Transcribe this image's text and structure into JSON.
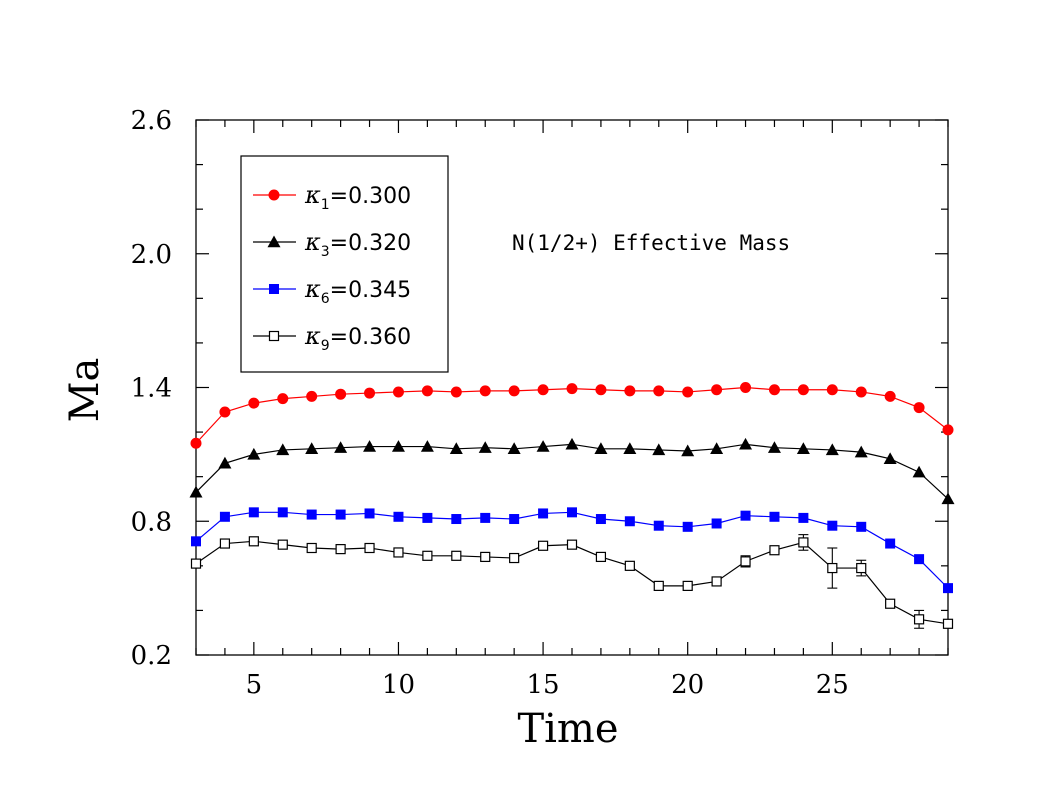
{
  "chart_data": {
    "type": "line",
    "title": "",
    "annotation": "N(1/2+) Effective Mass",
    "xlabel": "Time",
    "ylabel": "Ma",
    "xlim": [
      3,
      29
    ],
    "ylim": [
      0.2,
      2.6
    ],
    "xticks": [
      5,
      10,
      15,
      20,
      25
    ],
    "yticks": [
      0.2,
      0.8,
      1.4,
      2.0,
      2.6
    ],
    "ytick_labels": [
      "0.2",
      "0.8",
      "1.4",
      "2.0",
      "2.6"
    ],
    "xtick_labels": [
      "5",
      "10",
      "15",
      "20",
      "25"
    ],
    "grid": false,
    "legend_position": "top-left",
    "series": [
      {
        "name": "κ1=0.300",
        "symbol": "κ",
        "subscript": "1",
        "value_text": "=0.300",
        "color": "#ff0000",
        "marker": "filled-circle",
        "x": [
          3,
          4,
          5,
          6,
          7,
          8,
          9,
          10,
          11,
          12,
          13,
          14,
          15,
          16,
          17,
          18,
          19,
          20,
          21,
          22,
          23,
          24,
          25,
          26,
          27,
          28,
          29
        ],
        "y": [
          1.15,
          1.29,
          1.33,
          1.35,
          1.36,
          1.37,
          1.375,
          1.38,
          1.385,
          1.38,
          1.385,
          1.385,
          1.39,
          1.395,
          1.39,
          1.385,
          1.385,
          1.38,
          1.39,
          1.4,
          1.39,
          1.39,
          1.39,
          1.38,
          1.36,
          1.31,
          1.21
        ],
        "yerr": []
      },
      {
        "name": "κ3=0.320",
        "symbol": "κ",
        "subscript": "3",
        "value_text": "=0.320",
        "color": "#000000",
        "marker": "filled-triangle",
        "x": [
          3,
          4,
          5,
          6,
          7,
          8,
          9,
          10,
          11,
          12,
          13,
          14,
          15,
          16,
          17,
          18,
          19,
          20,
          21,
          22,
          23,
          24,
          25,
          26,
          27,
          28,
          29
        ],
        "y": [
          0.93,
          1.06,
          1.1,
          1.12,
          1.125,
          1.13,
          1.135,
          1.135,
          1.135,
          1.125,
          1.13,
          1.125,
          1.135,
          1.145,
          1.125,
          1.125,
          1.12,
          1.115,
          1.125,
          1.145,
          1.13,
          1.125,
          1.12,
          1.11,
          1.08,
          1.02,
          0.9
        ],
        "yerr": []
      },
      {
        "name": "κ6=0.345",
        "symbol": "κ",
        "subscript": "6",
        "value_text": "=0.345",
        "color": "#0000ff",
        "marker": "filled-square",
        "x": [
          3,
          4,
          5,
          6,
          7,
          8,
          9,
          10,
          11,
          12,
          13,
          14,
          15,
          16,
          17,
          18,
          19,
          20,
          21,
          22,
          23,
          24,
          25,
          26,
          27,
          28,
          29
        ],
        "y": [
          0.71,
          0.82,
          0.84,
          0.84,
          0.83,
          0.83,
          0.835,
          0.82,
          0.815,
          0.81,
          0.815,
          0.81,
          0.835,
          0.84,
          0.81,
          0.8,
          0.78,
          0.775,
          0.79,
          0.825,
          0.82,
          0.815,
          0.78,
          0.775,
          0.7,
          0.63,
          0.5
        ],
        "yerr": []
      },
      {
        "name": "κ9=0.360",
        "symbol": "κ",
        "subscript": "9",
        "value_text": "=0.360",
        "color": "#000000",
        "marker": "open-square",
        "x": [
          3,
          4,
          5,
          6,
          7,
          8,
          9,
          10,
          11,
          12,
          13,
          14,
          15,
          16,
          17,
          18,
          19,
          20,
          21,
          22,
          23,
          24,
          25,
          26,
          27,
          28,
          29
        ],
        "y": [
          0.61,
          0.7,
          0.71,
          0.695,
          0.68,
          0.675,
          0.68,
          0.66,
          0.645,
          0.645,
          0.64,
          0.635,
          0.69,
          0.695,
          0.64,
          0.6,
          0.51,
          0.51,
          0.53,
          0.62,
          0.67,
          0.705,
          0.59,
          0.59,
          0.43,
          0.36,
          0.34
        ],
        "yerr": [
          0,
          0,
          0,
          0,
          0,
          0,
          0,
          0,
          0,
          0,
          0,
          0,
          0,
          0,
          0,
          0,
          0,
          0,
          0,
          0.025,
          0,
          0.035,
          0.09,
          0.035,
          0,
          0.04,
          0
        ]
      }
    ]
  }
}
